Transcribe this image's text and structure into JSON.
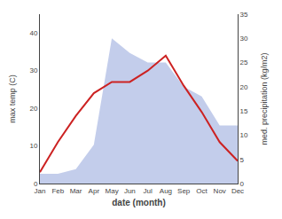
{
  "chart_data": {
    "type": "line",
    "xlabel": "date (month)",
    "ylabel": "max temp (C)",
    "y2label": "med. precipitation (kg/m2)",
    "categories": [
      "Jan",
      "Feb",
      "Mar",
      "Apr",
      "May",
      "Jun",
      "Jul",
      "Aug",
      "Sep",
      "Oct",
      "Nov",
      "Dec"
    ],
    "series": [
      {
        "type": "area",
        "axis": "y2",
        "color": "#b8c4e8",
        "values": [
          2,
          2,
          3,
          8,
          30,
          27,
          25,
          25,
          20,
          18,
          12,
          12
        ]
      },
      {
        "type": "line",
        "color": "#cc2222",
        "values": [
          3,
          11,
          18,
          24,
          27,
          27,
          30,
          34,
          26,
          19,
          11,
          6
        ]
      }
    ],
    "ylim": [
      0,
      45
    ],
    "yticks": [
      0,
      10,
      20,
      30,
      40
    ],
    "y2lim": [
      0,
      35
    ],
    "y2ticks": [
      0,
      5,
      10,
      15,
      20,
      25,
      30,
      35
    ],
    "grid": false
  }
}
